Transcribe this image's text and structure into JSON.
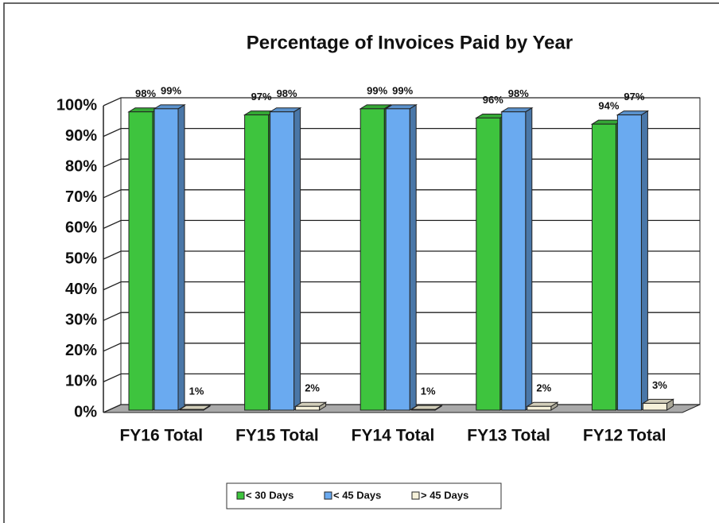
{
  "chart_data": {
    "type": "bar3d",
    "title": "Percentage of Invoices Paid by Year",
    "categories": [
      "FY16 Total",
      "FY15 Total",
      "FY14 Total",
      "FY13 Total",
      "FY12 Total"
    ],
    "series": [
      {
        "name": "< 30 Days",
        "color": "#3ec43e",
        "values": [
          98,
          97,
          99,
          96,
          94
        ],
        "value_labels": [
          "98%",
          "97%",
          "99%",
          "96%",
          "94%"
        ]
      },
      {
        "name": "< 45 Days",
        "color": "#6aaaf0",
        "values": [
          99,
          98,
          99,
          98,
          97
        ],
        "value_labels": [
          "99%",
          "98%",
          "99%",
          "98%",
          "97%"
        ]
      },
      {
        "name": "> 45 Days",
        "color": "#f6f1da",
        "values": [
          1,
          2,
          1,
          2,
          3
        ],
        "value_labels": [
          "1%",
          "2%",
          "1%",
          "2%",
          "3%"
        ]
      }
    ],
    "ylim": [
      0,
      100
    ],
    "yticks": [
      {
        "value": 0,
        "label": "0%"
      },
      {
        "value": 10,
        "label": "10%"
      },
      {
        "value": 20,
        "label": "20%"
      },
      {
        "value": 30,
        "label": "30%"
      },
      {
        "value": 40,
        "label": "40%"
      },
      {
        "value": 50,
        "label": "50%"
      },
      {
        "value": 60,
        "label": "60%"
      },
      {
        "value": 70,
        "label": "70%"
      },
      {
        "value": 80,
        "label": "80%"
      },
      {
        "value": 90,
        "label": "90%"
      },
      {
        "value": 100,
        "label": "100%"
      }
    ],
    "grid": true,
    "legend": "bottom"
  }
}
